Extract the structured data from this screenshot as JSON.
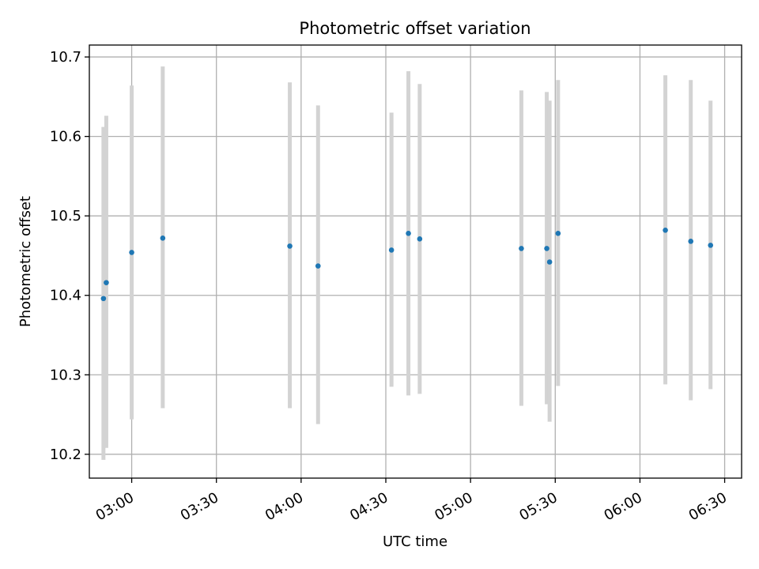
{
  "chart_data": {
    "type": "scatter",
    "title": "Photometric offset variation",
    "xlabel": "UTC time",
    "ylabel": "Photometric offset",
    "ylim": [
      10.17,
      10.715
    ],
    "xlim": [
      "02:45",
      "06:36"
    ],
    "grid": true,
    "x_ticks": [
      "03:00",
      "03:30",
      "04:00",
      "04:30",
      "05:00",
      "05:30",
      "06:00",
      "06:30"
    ],
    "y_ticks": [
      "10.2",
      "10.3",
      "10.4",
      "10.5",
      "10.6",
      "10.7"
    ],
    "points": [
      {
        "t": "02:50",
        "y": 10.396,
        "lo": 10.193,
        "hi": 10.612
      },
      {
        "t": "02:51",
        "y": 10.416,
        "lo": 10.208,
        "hi": 10.626
      },
      {
        "t": "03:00",
        "y": 10.454,
        "lo": 10.244,
        "hi": 10.664
      },
      {
        "t": "03:11",
        "y": 10.472,
        "lo": 10.258,
        "hi": 10.688
      },
      {
        "t": "03:56",
        "y": 10.462,
        "lo": 10.258,
        "hi": 10.668
      },
      {
        "t": "04:06",
        "y": 10.437,
        "lo": 10.238,
        "hi": 10.639
      },
      {
        "t": "04:32",
        "y": 10.457,
        "lo": 10.285,
        "hi": 10.63
      },
      {
        "t": "04:38",
        "y": 10.478,
        "lo": 10.274,
        "hi": 10.682
      },
      {
        "t": "04:42",
        "y": 10.471,
        "lo": 10.276,
        "hi": 10.666
      },
      {
        "t": "05:18",
        "y": 10.459,
        "lo": 10.261,
        "hi": 10.658
      },
      {
        "t": "05:27",
        "y": 10.459,
        "lo": 10.263,
        "hi": 10.656
      },
      {
        "t": "05:28",
        "y": 10.442,
        "lo": 10.241,
        "hi": 10.645
      },
      {
        "t": "05:31",
        "y": 10.478,
        "lo": 10.286,
        "hi": 10.671
      },
      {
        "t": "06:09",
        "y": 10.482,
        "lo": 10.288,
        "hi": 10.677
      },
      {
        "t": "06:18",
        "y": 10.468,
        "lo": 10.268,
        "hi": 10.671
      },
      {
        "t": "06:25",
        "y": 10.463,
        "lo": 10.282,
        "hi": 10.645
      }
    ],
    "colors": {
      "marker": "#1f77b4",
      "errorbar": "#d3d3d3",
      "grid": "#b0b0b0"
    }
  }
}
